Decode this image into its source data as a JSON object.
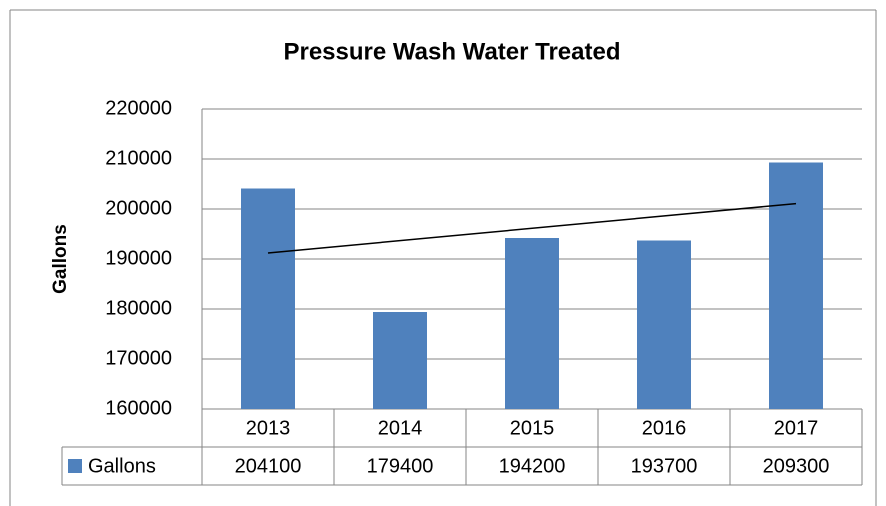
{
  "chart_data": {
    "type": "bar",
    "title": "Pressure Wash Water Treated",
    "y_label": "Gallons",
    "categories": [
      "2013",
      "2014",
      "2015",
      "2016",
      "2017"
    ],
    "series": [
      {
        "name": "Gallons",
        "color": "#4f81bd",
        "values": [
          204100,
          179400,
          194200,
          193700,
          209300
        ]
      }
    ],
    "ylim": [
      160000,
      220000
    ],
    "yticks": [
      160000,
      170000,
      180000,
      190000,
      200000,
      210000,
      220000
    ],
    "grid": true,
    "trendline": "linear",
    "data_table": true
  }
}
